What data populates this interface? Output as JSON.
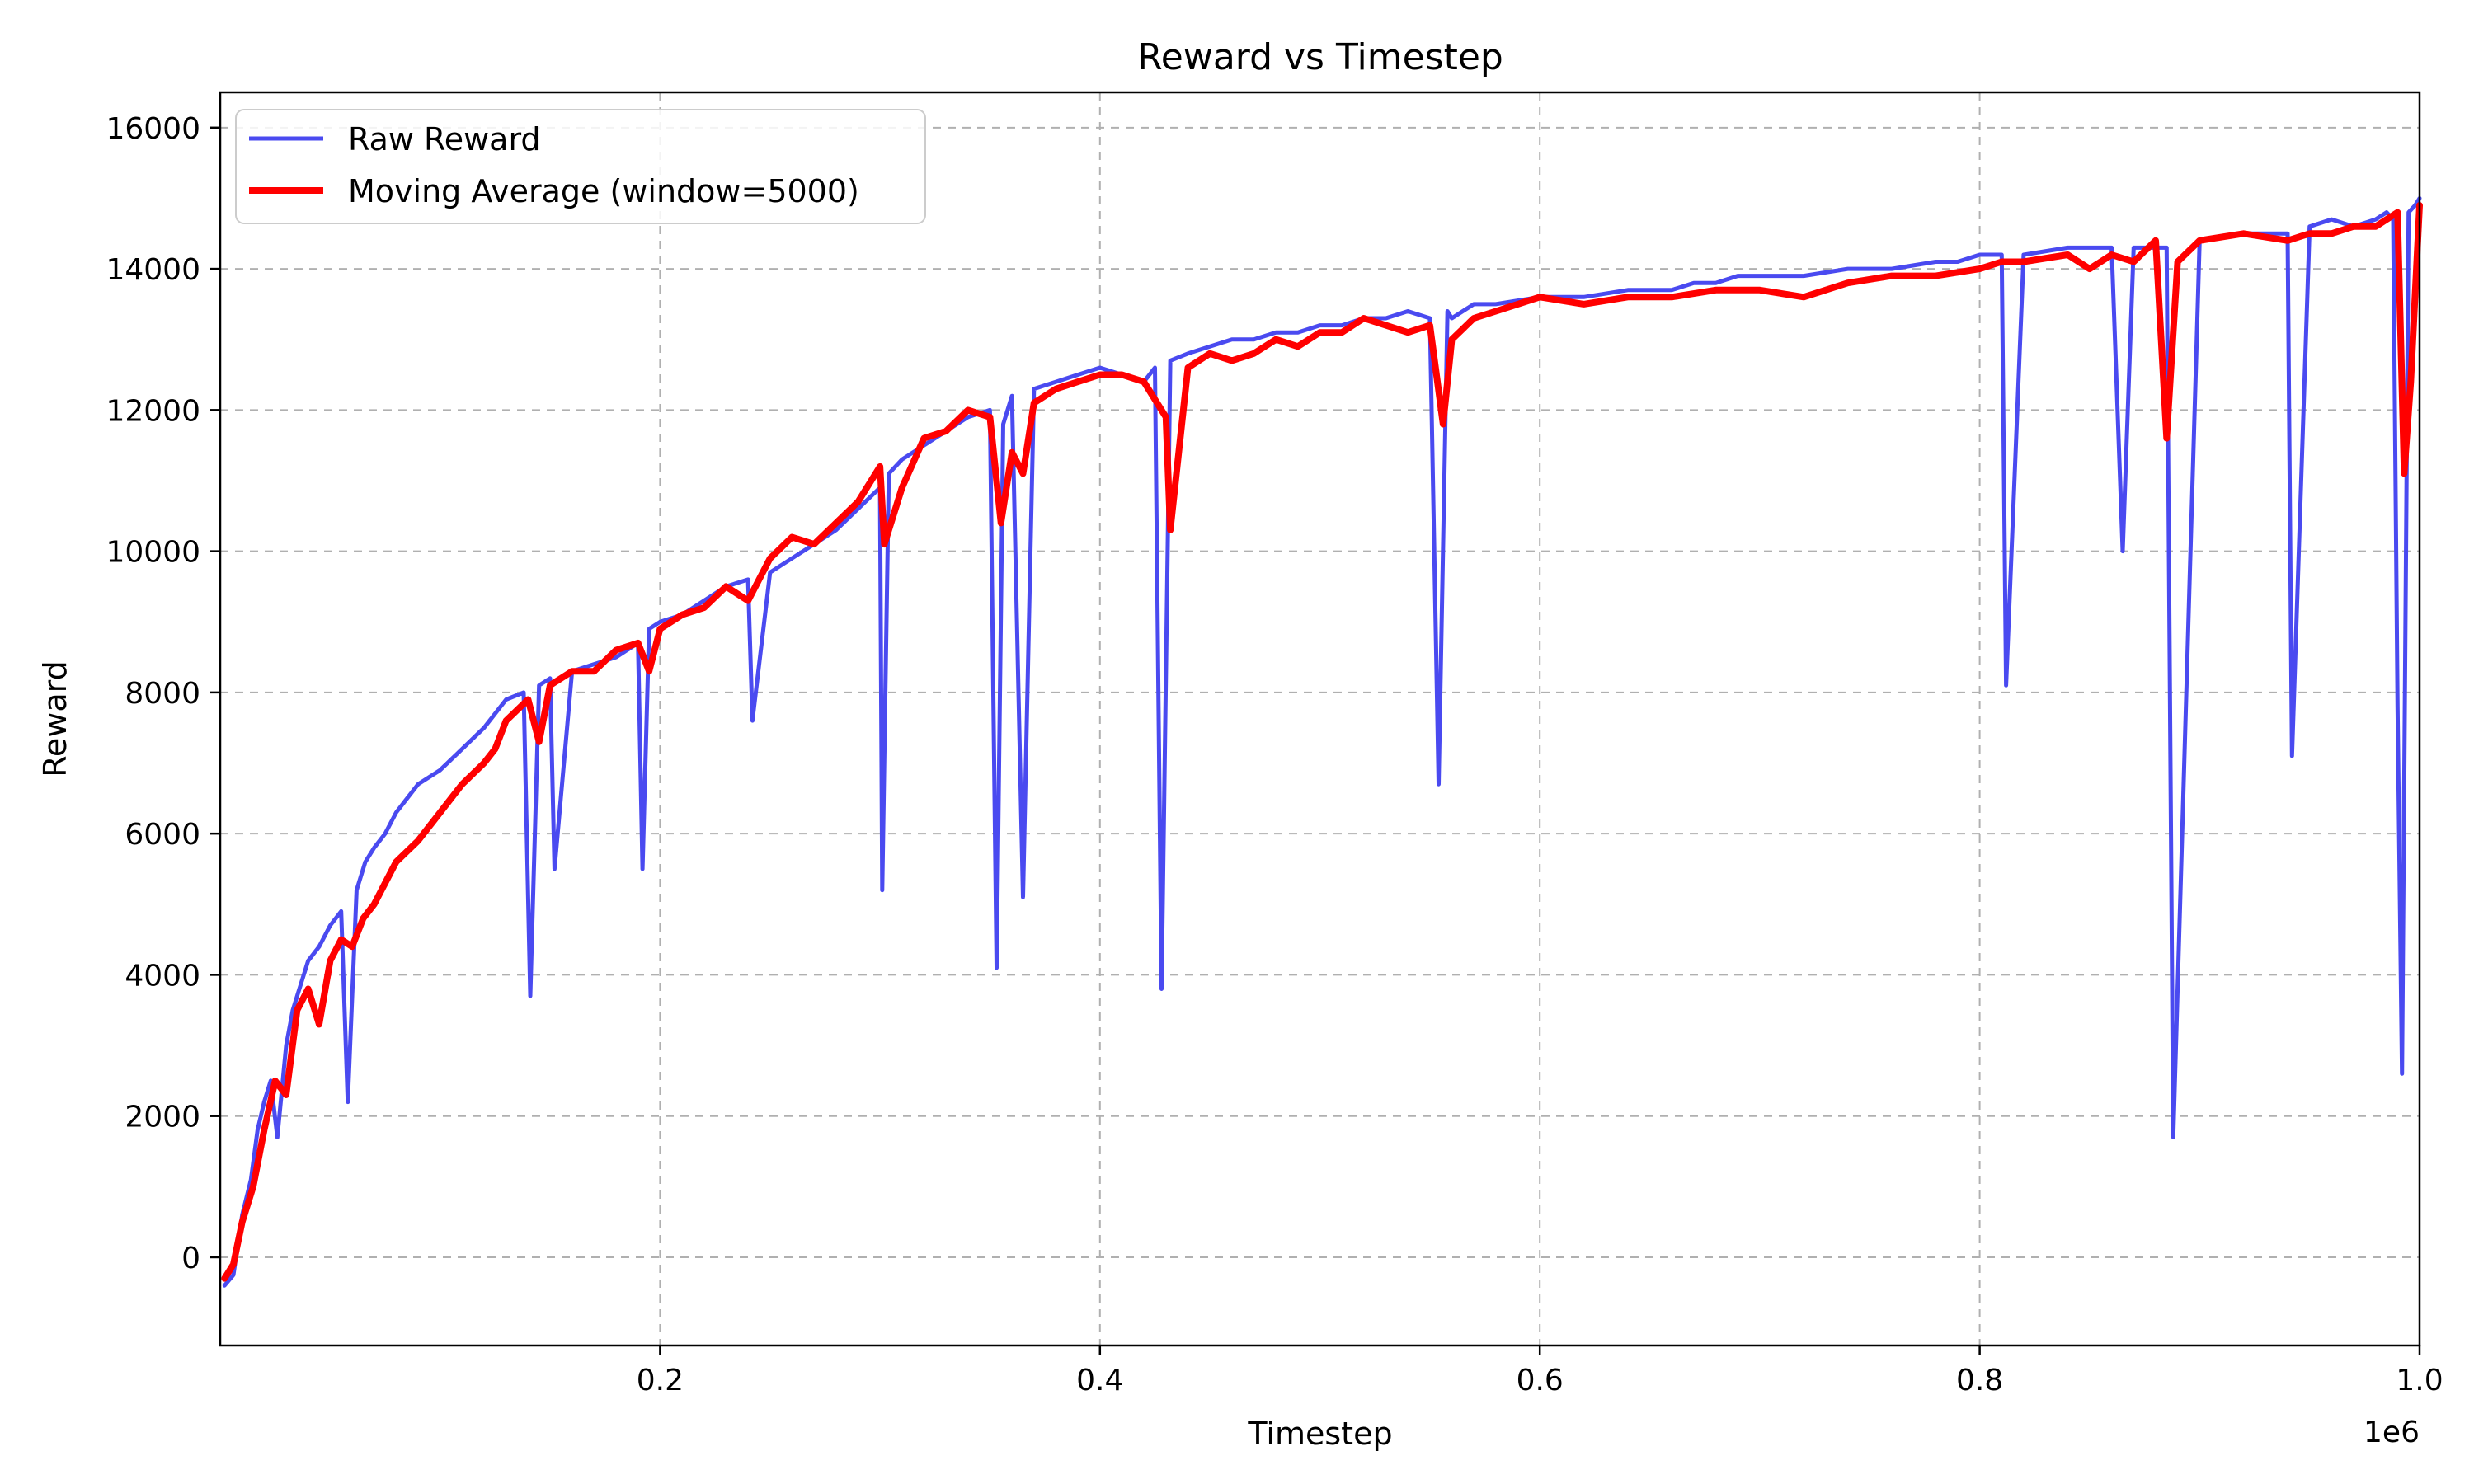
{
  "chart_data": {
    "type": "line",
    "title": "Reward vs Timestep",
    "xlabel": "Timestep",
    "ylabel": "Reward",
    "x_offset_label": "1e6",
    "xlim": [
      0.0,
      1.0
    ],
    "ylim": [
      -1250,
      16500
    ],
    "x_ticks": [
      0.2,
      0.4,
      0.6,
      0.8,
      1.0
    ],
    "x_tick_labels": [
      "0.2",
      "0.4",
      "0.6",
      "0.8",
      "1.0"
    ],
    "y_ticks": [
      0,
      2000,
      4000,
      6000,
      8000,
      10000,
      12000,
      14000,
      16000
    ],
    "y_tick_labels": [
      "0",
      "2000",
      "4000",
      "6000",
      "8000",
      "10000",
      "12000",
      "14000",
      "16000"
    ],
    "grid": true,
    "legend_position": "top-left",
    "series": [
      {
        "name": "Raw Reward",
        "color": "#4a4af0",
        "x": [
          0.002,
          0.006,
          0.01,
          0.014,
          0.017,
          0.02,
          0.023,
          0.026,
          0.03,
          0.033,
          0.036,
          0.04,
          0.045,
          0.05,
          0.055,
          0.058,
          0.062,
          0.066,
          0.07,
          0.075,
          0.08,
          0.085,
          0.09,
          0.1,
          0.11,
          0.12,
          0.125,
          0.13,
          0.138,
          0.141,
          0.145,
          0.15,
          0.152,
          0.16,
          0.17,
          0.18,
          0.19,
          0.192,
          0.195,
          0.2,
          0.21,
          0.22,
          0.23,
          0.24,
          0.242,
          0.25,
          0.26,
          0.27,
          0.28,
          0.29,
          0.3,
          0.301,
          0.304,
          0.31,
          0.32,
          0.33,
          0.34,
          0.35,
          0.353,
          0.356,
          0.36,
          0.365,
          0.37,
          0.38,
          0.39,
          0.4,
          0.41,
          0.42,
          0.425,
          0.428,
          0.432,
          0.44,
          0.45,
          0.46,
          0.47,
          0.48,
          0.49,
          0.5,
          0.51,
          0.52,
          0.53,
          0.54,
          0.55,
          0.554,
          0.558,
          0.56,
          0.57,
          0.58,
          0.6,
          0.62,
          0.64,
          0.66,
          0.67,
          0.68,
          0.69,
          0.7,
          0.72,
          0.74,
          0.76,
          0.78,
          0.79,
          0.8,
          0.81,
          0.812,
          0.82,
          0.84,
          0.85,
          0.86,
          0.865,
          0.87,
          0.88,
          0.885,
          0.888,
          0.9,
          0.92,
          0.94,
          0.942,
          0.95,
          0.96,
          0.97,
          0.98,
          0.985,
          0.988,
          0.99,
          0.992,
          0.995,
          0.998,
          1.0
        ],
        "values": [
          -400,
          -250,
          600,
          1100,
          1800,
          2200,
          2500,
          1700,
          3000,
          3500,
          3800,
          4200,
          4400,
          4700,
          4900,
          2200,
          5200,
          5600,
          5800,
          6000,
          6300,
          6500,
          6700,
          6900,
          7200,
          7500,
          7700,
          7900,
          8000,
          3700,
          8100,
          8200,
          5500,
          8300,
          8400,
          8500,
          8700,
          5500,
          8900,
          9000,
          9100,
          9300,
          9500,
          9600,
          7600,
          9700,
          9900,
          10100,
          10300,
          10600,
          10900,
          5200,
          11100,
          11300,
          11500,
          11700,
          11900,
          12000,
          4100,
          11800,
          12200,
          5100,
          12300,
          12400,
          12500,
          12600,
          12500,
          12400,
          12600,
          3800,
          12700,
          12800,
          12900,
          13000,
          13000,
          13100,
          13100,
          13200,
          13200,
          13300,
          13300,
          13400,
          13300,
          6700,
          13400,
          13300,
          13500,
          13500,
          13600,
          13600,
          13700,
          13700,
          13800,
          13800,
          13900,
          13900,
          13900,
          14000,
          14000,
          14100,
          14100,
          14200,
          14200,
          8100,
          14200,
          14300,
          14300,
          14300,
          10000,
          14300,
          14300,
          14300,
          1700,
          14400,
          14500,
          14500,
          7100,
          14600,
          14700,
          14600,
          14700,
          14800,
          14700,
          7800,
          2600,
          14800,
          14900,
          15000
        ]
      },
      {
        "name": "Moving Average (window=5000)",
        "color": "#ff0000",
        "x": [
          0.002,
          0.006,
          0.01,
          0.015,
          0.02,
          0.025,
          0.03,
          0.035,
          0.04,
          0.045,
          0.05,
          0.055,
          0.06,
          0.065,
          0.07,
          0.075,
          0.08,
          0.09,
          0.1,
          0.11,
          0.12,
          0.125,
          0.13,
          0.14,
          0.145,
          0.15,
          0.16,
          0.17,
          0.18,
          0.19,
          0.195,
          0.2,
          0.21,
          0.22,
          0.23,
          0.24,
          0.25,
          0.26,
          0.27,
          0.28,
          0.29,
          0.3,
          0.302,
          0.31,
          0.32,
          0.33,
          0.34,
          0.35,
          0.355,
          0.36,
          0.365,
          0.37,
          0.38,
          0.39,
          0.4,
          0.41,
          0.42,
          0.43,
          0.432,
          0.44,
          0.45,
          0.46,
          0.47,
          0.48,
          0.49,
          0.5,
          0.51,
          0.52,
          0.53,
          0.54,
          0.55,
          0.556,
          0.56,
          0.57,
          0.58,
          0.59,
          0.6,
          0.62,
          0.64,
          0.66,
          0.68,
          0.7,
          0.72,
          0.74,
          0.76,
          0.78,
          0.8,
          0.81,
          0.82,
          0.84,
          0.85,
          0.86,
          0.87,
          0.88,
          0.885,
          0.89,
          0.9,
          0.92,
          0.94,
          0.95,
          0.96,
          0.97,
          0.98,
          0.99,
          0.993,
          0.996,
          1.0
        ],
        "values": [
          -300,
          -100,
          500,
          1000,
          1800,
          2500,
          2300,
          3500,
          3800,
          3300,
          4200,
          4500,
          4400,
          4800,
          5000,
          5300,
          5600,
          5900,
          6300,
          6700,
          7000,
          7200,
          7600,
          7900,
          7300,
          8100,
          8300,
          8300,
          8600,
          8700,
          8300,
          8900,
          9100,
          9200,
          9500,
          9300,
          9900,
          10200,
          10100,
          10400,
          10700,
          11200,
          10100,
          10900,
          11600,
          11700,
          12000,
          11900,
          10400,
          11400,
          11100,
          12100,
          12300,
          12400,
          12500,
          12500,
          12400,
          11900,
          10300,
          12600,
          12800,
          12700,
          12800,
          13000,
          12900,
          13100,
          13100,
          13300,
          13200,
          13100,
          13200,
          11800,
          13000,
          13300,
          13400,
          13500,
          13600,
          13500,
          13600,
          13600,
          13700,
          13700,
          13600,
          13800,
          13900,
          13900,
          14000,
          14100,
          14100,
          14200,
          14000,
          14200,
          14100,
          14400,
          11600,
          14100,
          14400,
          14500,
          14400,
          14500,
          14500,
          14600,
          14600,
          14800,
          11100,
          12400,
          14900
        ]
      }
    ]
  }
}
